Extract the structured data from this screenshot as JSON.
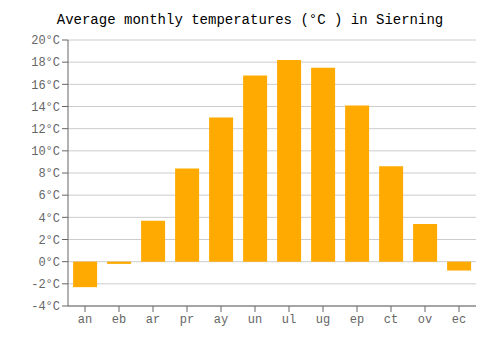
{
  "chart_data": {
    "type": "bar",
    "title": "Average monthly temperatures (°C ) in Sierning",
    "categories": [
      "an",
      "eb",
      "ar",
      "pr",
      "ay",
      "un",
      "ul",
      "ug",
      "ep",
      "ct",
      "ov",
      "ec"
    ],
    "values": [
      -2.3,
      -0.2,
      3.7,
      8.4,
      13.0,
      16.8,
      18.2,
      17.5,
      14.1,
      8.6,
      3.4,
      -0.8
    ],
    "color": "#FFAA00",
    "ylim": [
      -4,
      20
    ],
    "yticks": [
      {
        "value": -4,
        "label": "-4°C"
      },
      {
        "value": -2,
        "label": "-2°C"
      },
      {
        "value": 0,
        "label": "0°C"
      },
      {
        "value": 2,
        "label": "2°C"
      },
      {
        "value": 4,
        "label": "4°C"
      },
      {
        "value": 6,
        "label": "6°C"
      },
      {
        "value": 8,
        "label": "8°C"
      },
      {
        "value": 10,
        "label": "10°C"
      },
      {
        "value": 12,
        "label": "12°C"
      },
      {
        "value": 14,
        "label": "14°C"
      },
      {
        "value": 16,
        "label": "16°C"
      },
      {
        "value": 18,
        "label": "18°C"
      },
      {
        "value": 20,
        "label": "20°C"
      }
    ],
    "grid": true
  }
}
